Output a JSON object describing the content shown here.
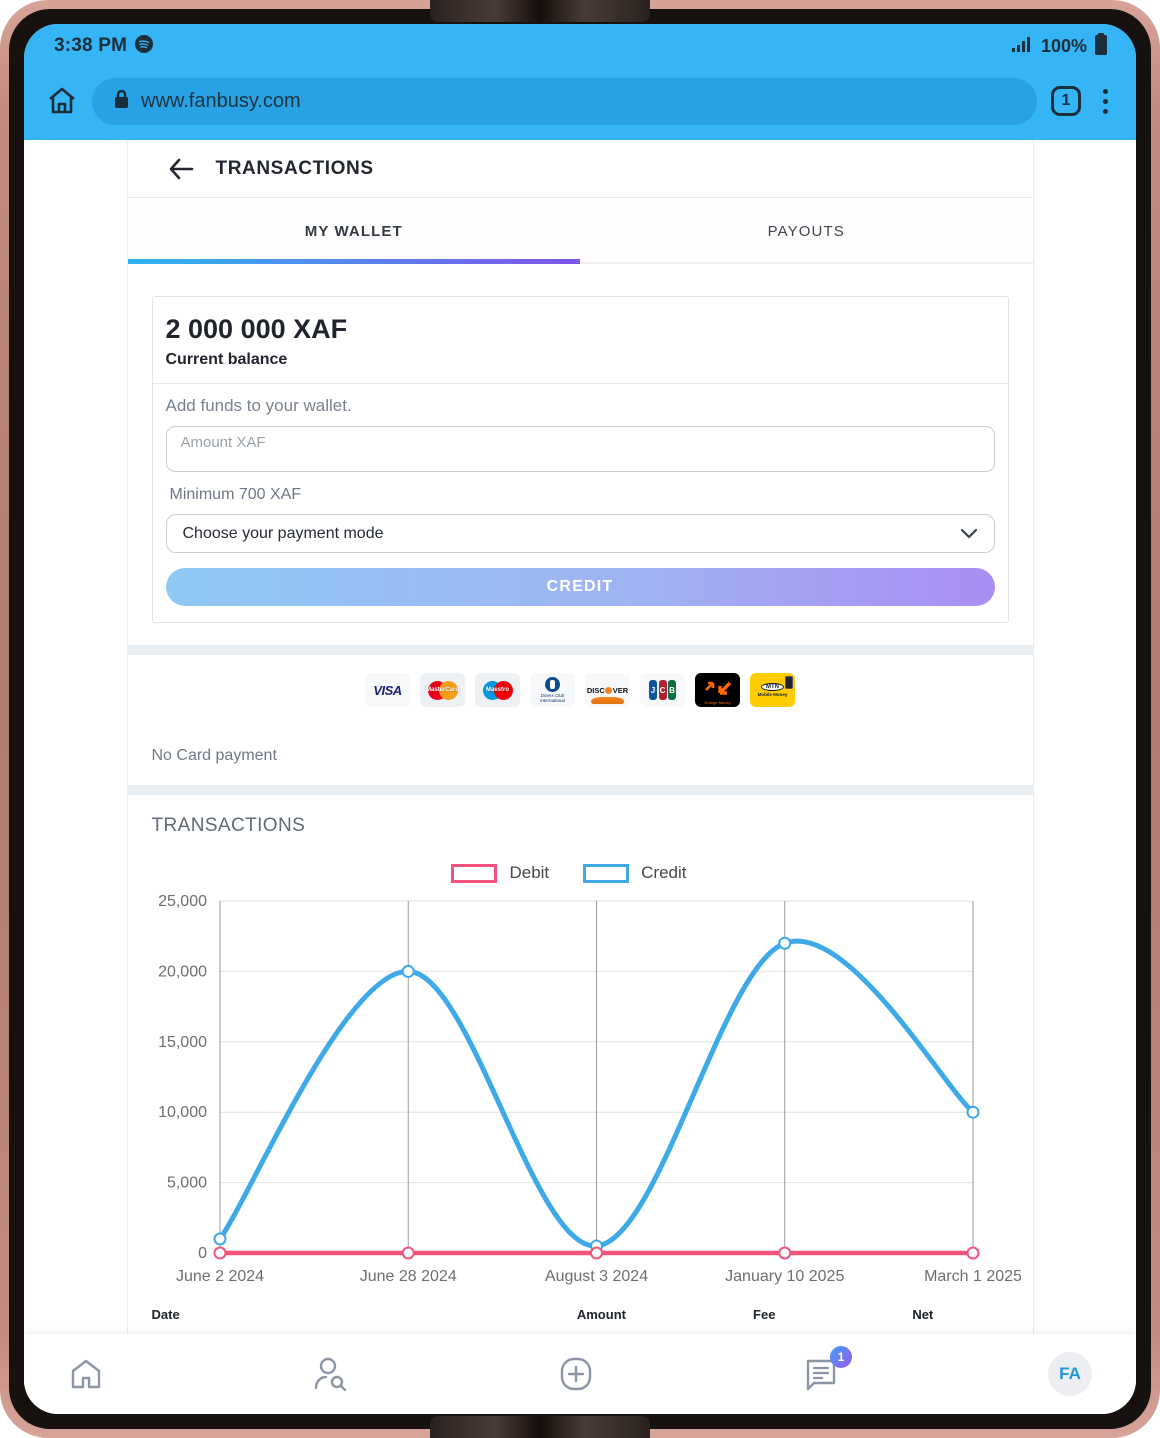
{
  "device": {
    "time": "3:38 PM",
    "battery_percent": "100%"
  },
  "browser": {
    "url": "www.fanbusy.com",
    "tab_count": "1"
  },
  "header": {
    "title": "TRANSACTIONS"
  },
  "tabs": {
    "my_wallet": "MY WALLET",
    "payouts": "PAYOUTS"
  },
  "wallet": {
    "balance": "2 000 000 XAF",
    "balance_label": "Current balance",
    "add_funds_label": "Add funds to your wallet.",
    "amount_placeholder": "Amount XAF",
    "minimum_hint": "Minimum 700 XAF",
    "payment_mode_placeholder": "Choose your payment mode",
    "credit_button": "CREDIT",
    "no_card_text": "No Card payment"
  },
  "payment_methods": [
    "Visa",
    "MasterCard",
    "Maestro",
    "Diners Club International",
    "Discover",
    "JCB",
    "Orange Money",
    "MTN Mobile Money"
  ],
  "card_labels": {
    "visa": "VISA",
    "mastercard": "MasterCard",
    "maestro": "Maestro",
    "diners": "Diners Club International",
    "discover_left": "DISC",
    "discover_right": "VER",
    "jcb_j": "J",
    "jcb_c": "C",
    "jcb_b": "B",
    "orange": "Orange Money",
    "mtn": "MTN",
    "mtn_sub": "Mobile Money"
  },
  "transactions_section": {
    "title": "TRANSACTIONS",
    "table_headers": [
      "Date",
      "Amount",
      "Fee",
      "Net"
    ]
  },
  "chart_data": {
    "type": "line",
    "x": [
      "June 2 2024",
      "June 28 2024",
      "August 3 2024",
      "January 10 2025",
      "March 1 2025"
    ],
    "series": [
      {
        "name": "Debit",
        "color": "#f4547c",
        "values": [
          0,
          0,
          0,
          0,
          0
        ]
      },
      {
        "name": "Credit",
        "color": "#3da9e8",
        "values": [
          1000,
          20000,
          500,
          22000,
          10000
        ]
      }
    ],
    "ylim": [
      0,
      25000
    ],
    "yticks": [
      0,
      5000,
      10000,
      15000,
      20000,
      25000
    ],
    "legend_position": "top",
    "grid": true
  },
  "bottom_nav": {
    "messages_badge": "1",
    "avatar_initials": "FA"
  },
  "colors": {
    "chrome_blue": "#35b4f6",
    "address_bar_blue": "#28a2e4",
    "tab_gradient_start": "#2db6f1",
    "tab_gradient_end": "#8053e8",
    "credit_btn_start": "#8fc9f5",
    "credit_btn_end": "#a98df3",
    "debit_line": "#f4547c",
    "credit_line": "#3da9e8",
    "frame_rose_gold": "#b07c70"
  }
}
